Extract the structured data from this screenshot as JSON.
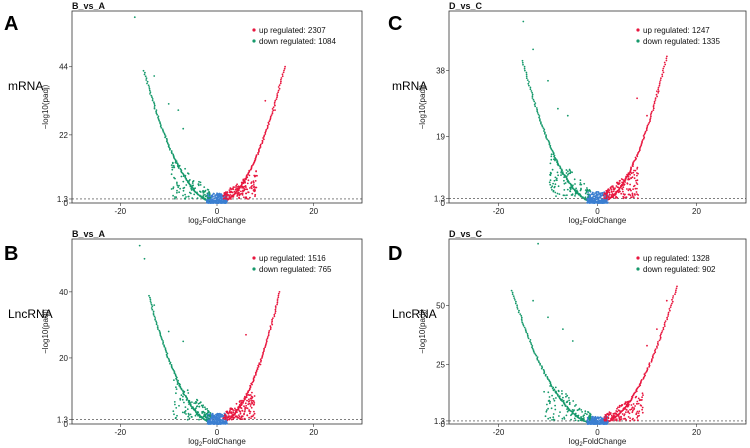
{
  "row_labels": [
    "mRNA",
    "LncRNA"
  ],
  "colors": {
    "up": "#e8173f",
    "down": "#16996b",
    "ns": "#3b7fd1"
  },
  "chart_data": [
    {
      "type": "scatter",
      "letter": "A",
      "title": "B_vs_A",
      "row": "mRNA",
      "xlabel_main": "log",
      "xlabel_sub": "2",
      "xlabel_tail": "FoldChange",
      "ylabel": "−log10(padj)",
      "xlim": [
        -30,
        30
      ],
      "ylim": [
        0,
        62
      ],
      "xticks": [
        -20,
        0,
        20
      ],
      "yticks": [
        0,
        1.3,
        22,
        44
      ],
      "threshold": 1.3,
      "legend": [
        {
          "key": "up",
          "label": "up regulated: 2307"
        },
        {
          "key": "down",
          "label": "down regulated: 1084"
        }
      ],
      "arm_x": 14,
      "arm_y": 44,
      "outliers": [
        [
          -17,
          60
        ],
        [
          -13,
          41
        ],
        [
          -10,
          32
        ],
        [
          -8,
          30
        ],
        [
          -7,
          24
        ],
        [
          10,
          33
        ],
        [
          12,
          30
        ]
      ]
    },
    {
      "type": "scatter",
      "letter": "C",
      "title": "D_vs_C",
      "row": "mRNA",
      "xlabel_main": "log",
      "xlabel_sub": "2",
      "xlabel_tail": "FoldChange",
      "ylabel": "−log10(padj)",
      "xlim": [
        -30,
        30
      ],
      "ylim": [
        0,
        55
      ],
      "xticks": [
        -20,
        0,
        20
      ],
      "yticks": [
        0,
        1.3,
        19,
        38
      ],
      "threshold": 1.3,
      "legend": [
        {
          "key": "up",
          "label": "up regulated: 1247"
        },
        {
          "key": "down",
          "label": "down regulated: 1335"
        }
      ],
      "arm_x": 14,
      "arm_y": 42,
      "outliers": [
        [
          -15,
          52
        ],
        [
          -13,
          44
        ],
        [
          -10,
          35
        ],
        [
          -8,
          27
        ],
        [
          -6,
          25
        ],
        [
          8,
          30
        ],
        [
          10,
          25
        ],
        [
          12,
          32
        ]
      ]
    },
    {
      "type": "scatter",
      "letter": "B",
      "title": "B_vs_A",
      "row": "LncRNA",
      "xlabel_main": "log",
      "xlabel_sub": "2",
      "xlabel_tail": "FoldChange",
      "ylabel": "−log10(padj)",
      "xlim": [
        -30,
        30
      ],
      "ylim": [
        0,
        56
      ],
      "xticks": [
        -20,
        0,
        20
      ],
      "yticks": [
        0,
        1.3,
        20,
        40
      ],
      "threshold": 1.3,
      "legend": [
        {
          "key": "up",
          "label": "up regulated: 1516"
        },
        {
          "key": "down",
          "label": "down regulated: 765"
        }
      ],
      "arm_x": 13,
      "arm_y": 40,
      "outliers": [
        [
          -16,
          54
        ],
        [
          -15,
          50
        ],
        [
          -13,
          36
        ],
        [
          -10,
          28
        ],
        [
          -7,
          25
        ],
        [
          6,
          27
        ],
        [
          9,
          18
        ]
      ]
    },
    {
      "type": "scatter",
      "letter": "D",
      "title": "D_vs_C",
      "row": "LncRNA",
      "xlabel_main": "log",
      "xlabel_sub": "2",
      "xlabel_tail": "FoldChange",
      "ylabel": "−log10(padj)",
      "xlim": [
        -30,
        30
      ],
      "ylim": [
        0,
        78
      ],
      "xticks": [
        -20,
        0,
        20
      ],
      "yticks": [
        0,
        1.3,
        25,
        50
      ],
      "threshold": 1.3,
      "legend": [
        {
          "key": "up",
          "label": "up regulated: 1328"
        },
        {
          "key": "down",
          "label": "down regulated: 902"
        }
      ],
      "arm_x": 16,
      "arm_y": 58,
      "outliers": [
        [
          -12,
          76
        ],
        [
          -13,
          52
        ],
        [
          -10,
          45
        ],
        [
          -7,
          40
        ],
        [
          -5,
          35
        ],
        [
          10,
          33
        ],
        [
          12,
          40
        ],
        [
          14,
          52
        ]
      ]
    }
  ]
}
